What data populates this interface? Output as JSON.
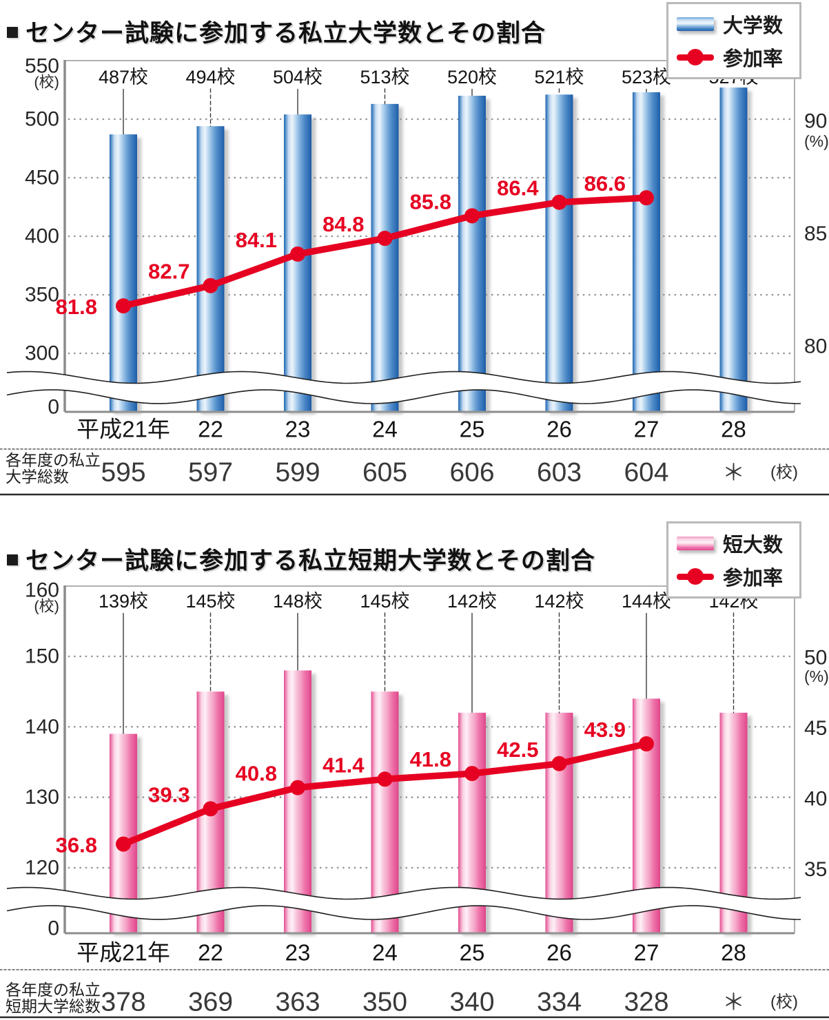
{
  "chart_data": [
    {
      "id": "private-universities",
      "type": "bar",
      "title_bullet": "■",
      "title": "センター試験に参加する私立大学数とその割合",
      "categories": [
        "平成21年",
        "22",
        "23",
        "24",
        "25",
        "26",
        "27",
        "28"
      ],
      "series": [
        {
          "name": "大学数",
          "type": "bar",
          "unit": "校",
          "color": "#3c7dc1",
          "values": [
            487,
            494,
            504,
            513,
            520,
            521,
            523,
            527
          ],
          "bar_labels": [
            "487校",
            "494校",
            "504校",
            "513校",
            "520校",
            "521校",
            "523校",
            "527校"
          ]
        },
        {
          "name": "参加率",
          "type": "line",
          "unit": "%",
          "color": "#e60021",
          "values": [
            81.8,
            82.7,
            84.1,
            84.8,
            85.8,
            86.4,
            86.6,
            null
          ],
          "point_labels": [
            "81.8",
            "82.7",
            "84.1",
            "84.8",
            "85.8",
            "86.4",
            "86.6"
          ]
        }
      ],
      "left_axis": {
        "unit": "(校)",
        "ticks": [
          550,
          500,
          450,
          400,
          350,
          300
        ],
        "zero": "0",
        "range": [
          0,
          550
        ],
        "axis_break": true
      },
      "right_axis": {
        "unit": "(%)",
        "ticks": [
          90,
          85,
          80
        ],
        "range": [
          80,
          90
        ]
      },
      "legend": [
        {
          "label": "大学数",
          "swatch": "bar-blue"
        },
        {
          "label": "参加率",
          "swatch": "line-red"
        }
      ],
      "totals": {
        "header_line1": "各年度の私立",
        "header_line2": "大学総数",
        "values": [
          "595",
          "597",
          "599",
          "605",
          "606",
          "603",
          "604",
          "＊"
        ],
        "unit": "(校)"
      },
      "grid": "dotted"
    },
    {
      "id": "private-junior-colleges",
      "type": "bar",
      "title_bullet": "■",
      "title": "センター試験に参加する私立短期大学数とその割合",
      "categories": [
        "平成21年",
        "22",
        "23",
        "24",
        "25",
        "26",
        "27",
        "28"
      ],
      "series": [
        {
          "name": "短大数",
          "type": "bar",
          "unit": "校",
          "color": "#e95b9b",
          "values": [
            139,
            145,
            148,
            145,
            142,
            142,
            144,
            142
          ],
          "bar_labels": [
            "139校",
            "145校",
            "148校",
            "145校",
            "142校",
            "142校",
            "144校",
            "142校"
          ]
        },
        {
          "name": "参加率",
          "type": "line",
          "unit": "%",
          "color": "#e60021",
          "values": [
            36.8,
            39.3,
            40.8,
            41.4,
            41.8,
            42.5,
            43.9,
            null
          ],
          "point_labels": [
            "36.8",
            "39.3",
            "40.8",
            "41.4",
            "41.8",
            "42.5",
            "43.9"
          ]
        }
      ],
      "left_axis": {
        "unit": "(校)",
        "ticks": [
          160,
          150,
          140,
          130,
          120
        ],
        "zero": "0",
        "range": [
          0,
          160
        ],
        "axis_break": true
      },
      "right_axis": {
        "unit": "(%)",
        "ticks": [
          50,
          45,
          40,
          35
        ],
        "range": [
          35,
          50
        ]
      },
      "legend": [
        {
          "label": "短大数",
          "swatch": "bar-pink"
        },
        {
          "label": "参加率",
          "swatch": "line-red"
        }
      ],
      "totals": {
        "header_line1": "各年度の私立",
        "header_line2": "短期大学総数",
        "values": [
          "378",
          "369",
          "363",
          "350",
          "340",
          "334",
          "328",
          "＊"
        ],
        "unit": "(校)"
      },
      "grid": "dotted"
    }
  ]
}
